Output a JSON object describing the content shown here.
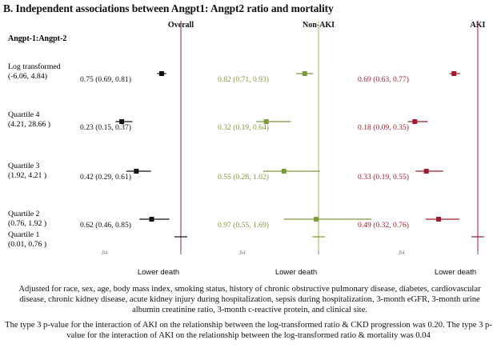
{
  "title": "B. Independent associations between Angpt1: Angpt2 ratio and mortality",
  "footnote": "Adjusted for race, sex, age, body mass index, smoking status, history of chronic obstructive pulmonary disease, diabetes, cardiovascular disease, chronic kidney disease, acute kidney injury during hospitalization, sepsis during hospitalization, 3-month eGFR, 3-month urine albumin creatinine ratio, 3-month c-reactive protein, and clinical site.",
  "pvalue_note": "The type 3 p-value for the interaction of AKI on the relationship between the log-transformed ratio & CKD progression was 0.20. The type 3 p-value for the interaction of AKI on the relationship between the log-transformed ratio & mortality was 0.04",
  "chart_data": {
    "type": "forest",
    "row_header": "Angpt-1:Angpt-2",
    "xlabel": "Lower death",
    "reference_value": 1,
    "xlim": [
      0.0,
      1.0
    ],
    "tick_label": ".84",
    "rows": [
      {
        "label_line1": "Log transformed",
        "label_line2": "(-6.06, 4.84)"
      },
      {
        "label_line1": "Quartile 4",
        "label_line2": "(4.21, 28.66 )"
      },
      {
        "label_line1": "Quartile 3",
        "label_line2": "(1.92, 4.21 )"
      },
      {
        "label_line1": "Quartile 2",
        "label_line2": "(0.76, 1.92 )"
      },
      {
        "label_line1": "Quartile 1",
        "label_line2": "(0.01, 0.76 )"
      }
    ],
    "panels": [
      {
        "name": "Overall",
        "color": "#111111",
        "ref_color": "#7a2a2a",
        "estimates": [
          {
            "point": 0.75,
            "lower": 0.69,
            "upper": 0.81,
            "label": "0.75 (0.69, 0.81)"
          },
          {
            "point": 0.23,
            "lower": 0.15,
            "upper": 0.37,
            "label": "0.23 (0.15, 0.37)"
          },
          {
            "point": 0.42,
            "lower": 0.29,
            "upper": 0.61,
            "label": "0.42 (0.29, 0.61)"
          },
          {
            "point": 0.62,
            "lower": 0.46,
            "upper": 0.85,
            "label": "0.62 (0.46, 0.85)"
          },
          {
            "point": 1.0,
            "lower": 1.0,
            "upper": 1.0,
            "label": ""
          }
        ]
      },
      {
        "name": "Non-AKI",
        "color": "#7c9a3a",
        "ref_color": "#9db86a",
        "estimates": [
          {
            "point": 0.82,
            "lower": 0.71,
            "upper": 0.93,
            "label": "0.82 (0.71, 0.93)"
          },
          {
            "point": 0.32,
            "lower": 0.19,
            "upper": 0.64,
            "label": "0.32 (0.19, 0.64)"
          },
          {
            "point": 0.55,
            "lower": 0.28,
            "upper": 1.02,
            "label": "0.55 (0.28, 1.02)"
          },
          {
            "point": 0.97,
            "lower": 0.55,
            "upper": 1.69,
            "label": "0.97 (0.55, 1.69)"
          },
          {
            "point": 1.0,
            "lower": 1.0,
            "upper": 1.0,
            "label": ""
          }
        ]
      },
      {
        "name": "AKI",
        "color": "#a01c2a",
        "ref_color": "#a01c2a",
        "estimates": [
          {
            "point": 0.69,
            "lower": 0.63,
            "upper": 0.77,
            "label": "0.69 (0.63, 0.77)"
          },
          {
            "point": 0.18,
            "lower": 0.09,
            "upper": 0.35,
            "label": "0.18 (0.09, 0.35)"
          },
          {
            "point": 0.33,
            "lower": 0.19,
            "upper": 0.55,
            "label": "0.33 (0.19, 0.55)"
          },
          {
            "point": 0.49,
            "lower": 0.32,
            "upper": 0.76,
            "label": "0.49 (0.32, 0.76)"
          },
          {
            "point": 1.0,
            "lower": 1.0,
            "upper": 1.0,
            "label": ""
          }
        ]
      }
    ]
  }
}
